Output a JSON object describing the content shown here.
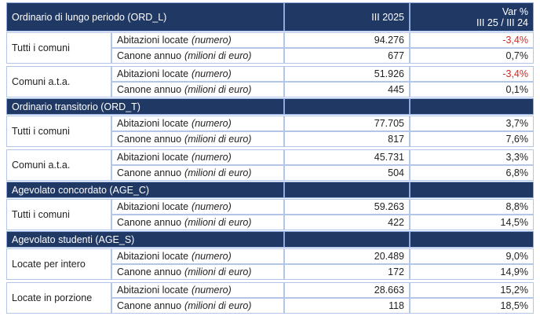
{
  "header": {
    "title": "Ordinario di lungo periodo (ORD_L)",
    "col_value": "III 2025",
    "col_var": [
      "Var %",
      "III 25 / III 24"
    ]
  },
  "sections": [
    {
      "groups": [
        {
          "label": "Tutti i comuni",
          "rows": [
            {
              "metric": "Abitazioni locate",
              "unit": "(numero)",
              "value": "94.276",
              "var": "-3,4%"
            },
            {
              "metric": "Canone annuo",
              "unit": "(milioni di euro)",
              "value": "677",
              "var": "0,7%"
            }
          ]
        },
        {
          "label": "Comuni a.t.a.",
          "rows": [
            {
              "metric": "Abitazioni locate",
              "unit": "(numero)",
              "value": "51.926",
              "var": "-3,4%"
            },
            {
              "metric": "Canone annuo",
              "unit": "(milioni di euro)",
              "value": "445",
              "var": "0,1%"
            }
          ]
        }
      ]
    },
    {
      "title": "Ordinario transitorio (ORD_T)",
      "groups": [
        {
          "label": "Tutti i comuni",
          "rows": [
            {
              "metric": "Abitazioni locate",
              "unit": "(numero)",
              "value": "77.705",
              "var": "3,7%"
            },
            {
              "metric": "Canone annuo",
              "unit": "(milioni di euro)",
              "value": "817",
              "var": "7,6%"
            }
          ]
        },
        {
          "label": "Comuni a.t.a.",
          "rows": [
            {
              "metric": "Abitazioni locate",
              "unit": "(numero)",
              "value": "45.731",
              "var": "3,3%"
            },
            {
              "metric": "Canone annuo",
              "unit": "(milioni di euro)",
              "value": "504",
              "var": "6,8%"
            }
          ]
        }
      ]
    },
    {
      "title": "Agevolato concordato (AGE_C)",
      "groups": [
        {
          "label": "Tutti i comuni",
          "rows": [
            {
              "metric": "Abitazioni locate",
              "unit": "(numero)",
              "value": "59.263",
              "var": "8,8%"
            },
            {
              "metric": "Canone annuo",
              "unit": "(milioni di euro)",
              "value": "422",
              "var": "14,5%"
            }
          ]
        }
      ]
    },
    {
      "title": "Agevolato studenti (AGE_S)",
      "groups": [
        {
          "label": "Locate per intero",
          "rows": [
            {
              "metric": "Abitazioni locate",
              "unit": "(numero)",
              "value": "20.489",
              "var": "9,0%"
            },
            {
              "metric": "Canone annuo",
              "unit": "(milioni di euro)",
              "value": "172",
              "var": "14,9%"
            }
          ]
        },
        {
          "label": "Locate in porzione",
          "rows": [
            {
              "metric": "Abitazioni locate",
              "unit": "(numero)",
              "value": "28.663",
              "var": "15,2%"
            },
            {
              "metric": "Canone annuo",
              "unit": "(milioni di euro)",
              "value": "118",
              "var": "18,5%"
            }
          ]
        }
      ]
    }
  ]
}
